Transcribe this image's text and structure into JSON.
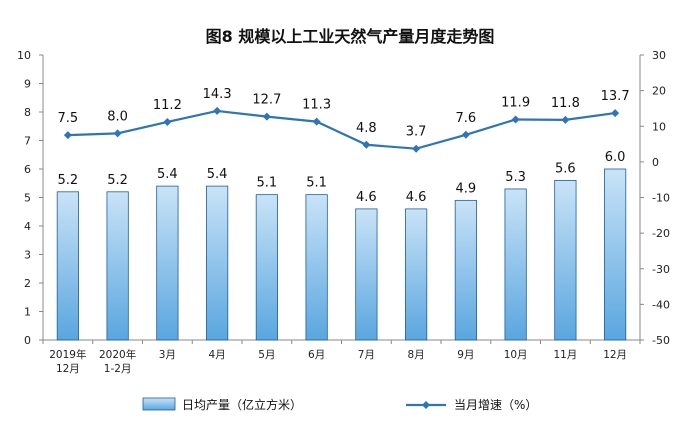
{
  "chart_data": {
    "type": "bar+line",
    "title": "图8  规模以上工业天然气产量月度走势图",
    "categories": [
      [
        "2019年",
        "12月"
      ],
      [
        "2020年",
        "1-2月"
      ],
      [
        "3月"
      ],
      [
        "4月"
      ],
      [
        "5月"
      ],
      [
        "6月"
      ],
      [
        "7月"
      ],
      [
        "8月"
      ],
      [
        "9月"
      ],
      [
        "10月"
      ],
      [
        "11月"
      ],
      [
        "12月"
      ]
    ],
    "left_axis": {
      "min": 0,
      "max": 10,
      "ticks": [
        "0",
        "1",
        "2",
        "3",
        "4",
        "5",
        "6",
        "7",
        "8",
        "9",
        "10"
      ]
    },
    "right_axis": {
      "min": -50,
      "max": 30,
      "ticks": [
        "-50",
        "-40",
        "-30",
        "-20",
        "-10",
        "0",
        "10",
        "20",
        "30"
      ]
    },
    "series": [
      {
        "name": "日均产量（亿立方米）",
        "type": "bar",
        "axis": "left",
        "values": [
          5.2,
          5.2,
          5.4,
          5.4,
          5.1,
          5.1,
          4.6,
          4.6,
          4.9,
          5.3,
          5.6,
          6.0
        ]
      },
      {
        "name": "当月增速（%）",
        "type": "line",
        "axis": "right",
        "values": [
          7.5,
          8.0,
          11.2,
          14.3,
          12.7,
          11.3,
          4.8,
          3.7,
          7.6,
          11.9,
          11.8,
          13.7
        ]
      }
    ],
    "legend_position": "bottom",
    "grid": false,
    "colors": {
      "bar_fill_top": "#c9e3f7",
      "bar_fill_bottom": "#5aa6df",
      "bar_stroke": "#1f5f99",
      "line": "#2e75b6"
    }
  }
}
